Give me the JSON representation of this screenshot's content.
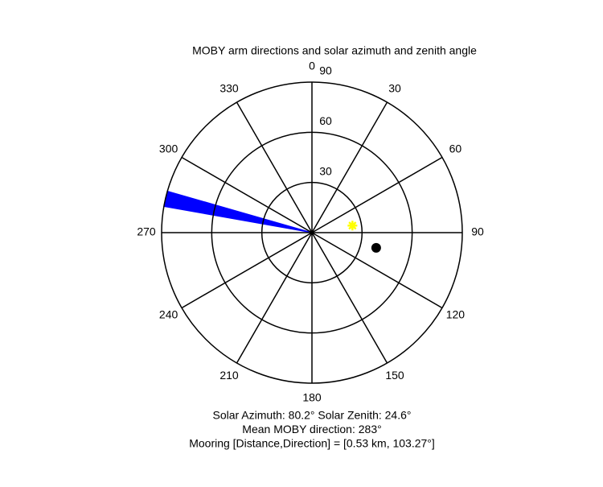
{
  "chart_data": {
    "type": "polar",
    "title": "MOBY arm directions and solar azimuth and zenith angle",
    "direction": "clockwise",
    "zero": "top",
    "thetaticks": [
      0,
      30,
      60,
      90,
      120,
      150,
      180,
      210,
      240,
      270,
      300,
      330
    ],
    "rlim": [
      0,
      90
    ],
    "rticks": [
      30,
      60,
      90
    ],
    "wedge": {
      "theta": [
        280,
        286
      ],
      "r": 90,
      "color": "#0000ff"
    },
    "points": [
      {
        "theta": 80.2,
        "r": 24.6,
        "color": "#ffff00",
        "marker": "asterisk"
      },
      {
        "theta": 103.27,
        "r": 39.5,
        "color": "#000000",
        "marker": "circle"
      }
    ],
    "annotations": [
      "Solar Azimuth: 80.2°   Solar Zenith: 24.6°",
      "Mean MOBY direction: 283°",
      "Mooring [Distance,Direction] = [0.53 km, 103.27°]"
    ]
  }
}
